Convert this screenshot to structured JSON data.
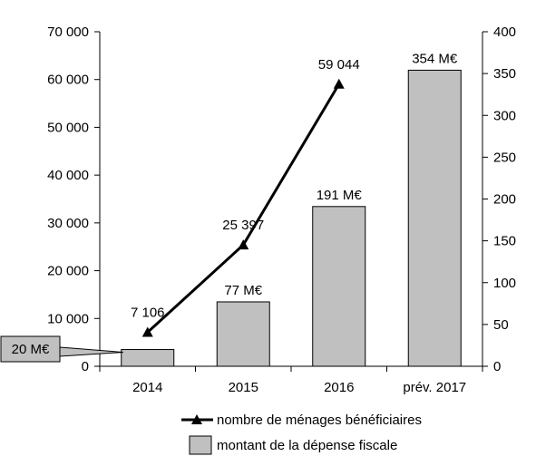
{
  "chart_data": {
    "type": "bar",
    "categories": [
      "2014",
      "2015",
      "2016",
      "prév. 2017"
    ],
    "series": [
      {
        "name": "montant de la dépense fiscale",
        "type": "bar",
        "axis": "right",
        "values": [
          20,
          77,
          191,
          354
        ],
        "labels": [
          "20 M€",
          "77 M€",
          "191 M€",
          "354 M€"
        ],
        "color": "#c0c0c0"
      },
      {
        "name": "nombre de ménages bénéficiaires",
        "type": "line",
        "axis": "left",
        "values": [
          7106,
          25397,
          59044,
          null
        ],
        "labels": [
          "7 106",
          "25 397",
          "59 044",
          ""
        ],
        "color": "#000000",
        "marker": "triangle"
      }
    ],
    "y_left": {
      "ylim": [
        0,
        70000
      ],
      "ticks": [
        "0",
        "10 000",
        "20 000",
        "30 000",
        "40 000",
        "50 000",
        "60 000",
        "70 000"
      ]
    },
    "y_right": {
      "ylim": [
        0,
        400
      ],
      "ticks": [
        "0",
        "50",
        "100",
        "150",
        "200",
        "250",
        "300",
        "350",
        "400"
      ]
    },
    "legend": {
      "position": "bottom"
    },
    "grid": false
  }
}
